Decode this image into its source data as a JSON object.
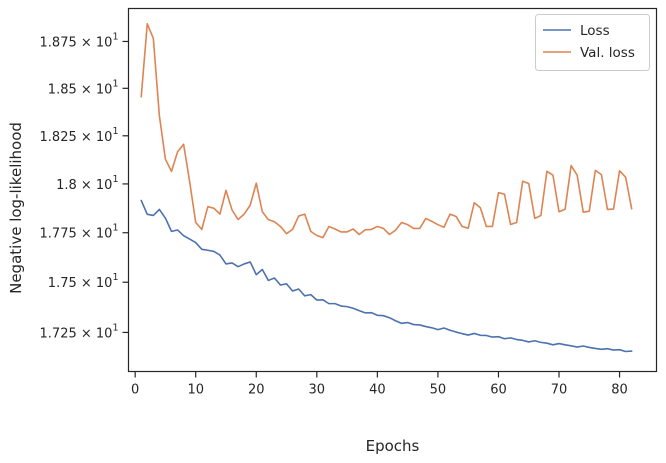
{
  "chart_data": {
    "type": "line",
    "xlabel": "Epochs",
    "ylabel": "Negative log-likelihood",
    "xlim": [
      -1.1,
      86.1
    ],
    "ylim": [
      17.058,
      18.928
    ],
    "x_ticks": [
      0,
      10,
      20,
      30,
      40,
      50,
      60,
      70,
      80
    ],
    "x_tick_labels": [
      "0",
      "10",
      "20",
      "30",
      "40",
      "50",
      "60",
      "70",
      "80"
    ],
    "y_ticks": [
      17.25,
      17.5,
      17.75,
      18.0,
      18.25,
      18.5,
      18.75
    ],
    "y_tick_labels": [
      {
        "mantissa": "1.725",
        "exponent": "1"
      },
      {
        "mantissa": "1.75",
        "exponent": "1"
      },
      {
        "mantissa": "1.775",
        "exponent": "1"
      },
      {
        "mantissa": "1.8",
        "exponent": "1"
      },
      {
        "mantissa": "1.825",
        "exponent": "1"
      },
      {
        "mantissa": "1.85",
        "exponent": "1"
      },
      {
        "mantissa": "1.875",
        "exponent": "1"
      }
    ],
    "y_scale": "log",
    "grid": false,
    "legend_position": "top-right",
    "x": [
      1,
      2,
      3,
      4,
      5,
      6,
      7,
      8,
      9,
      10,
      11,
      12,
      13,
      14,
      15,
      16,
      17,
      18,
      19,
      20,
      21,
      22,
      23,
      24,
      25,
      26,
      27,
      28,
      29,
      30,
      31,
      32,
      33,
      34,
      35,
      36,
      37,
      38,
      39,
      40,
      41,
      42,
      43,
      44,
      45,
      46,
      47,
      48,
      49,
      50,
      51,
      52,
      53,
      54,
      55,
      56,
      57,
      58,
      59,
      60,
      61,
      62,
      63,
      64,
      65,
      66,
      67,
      68,
      69,
      70,
      71,
      72,
      73,
      74,
      75,
      76,
      77,
      78,
      79,
      80,
      81,
      82
    ],
    "series": [
      {
        "name": "Loss",
        "color": "#4c72b0",
        "values": [
          17.915,
          17.844,
          17.838,
          17.869,
          17.824,
          17.757,
          17.764,
          17.735,
          17.718,
          17.7,
          17.666,
          17.661,
          17.655,
          17.637,
          17.592,
          17.597,
          17.578,
          17.592,
          17.602,
          17.538,
          17.564,
          17.509,
          17.521,
          17.486,
          17.492,
          17.456,
          17.466,
          17.432,
          17.438,
          17.411,
          17.412,
          17.393,
          17.393,
          17.381,
          17.378,
          17.37,
          17.358,
          17.347,
          17.348,
          17.335,
          17.333,
          17.323,
          17.308,
          17.295,
          17.299,
          17.289,
          17.287,
          17.279,
          17.273,
          17.264,
          17.272,
          17.261,
          17.252,
          17.244,
          17.237,
          17.245,
          17.236,
          17.235,
          17.227,
          17.229,
          17.219,
          17.223,
          17.215,
          17.211,
          17.203,
          17.209,
          17.201,
          17.197,
          17.189,
          17.195,
          17.189,
          17.184,
          17.178,
          17.183,
          17.176,
          17.171,
          17.167,
          17.17,
          17.163,
          17.165,
          17.156,
          17.158
        ]
      },
      {
        "name": "Val. loss",
        "color": "#dd8452",
        "values": [
          18.455,
          18.845,
          18.767,
          18.355,
          18.128,
          18.065,
          18.166,
          18.206,
          18.012,
          17.802,
          17.767,
          17.883,
          17.875,
          17.845,
          17.967,
          17.866,
          17.817,
          17.845,
          17.891,
          18.004,
          17.857,
          17.817,
          17.806,
          17.782,
          17.745,
          17.767,
          17.835,
          17.845,
          17.757,
          17.736,
          17.725,
          17.782,
          17.769,
          17.754,
          17.754,
          17.769,
          17.741,
          17.765,
          17.767,
          17.782,
          17.772,
          17.741,
          17.763,
          17.802,
          17.791,
          17.772,
          17.772,
          17.823,
          17.808,
          17.791,
          17.778,
          17.845,
          17.833,
          17.782,
          17.773,
          17.903,
          17.878,
          17.782,
          17.782,
          17.955,
          17.947,
          17.792,
          17.802,
          18.014,
          18.002,
          17.823,
          17.838,
          18.065,
          18.045,
          17.857,
          17.87,
          18.095,
          18.045,
          17.855,
          17.86,
          18.07,
          18.048,
          17.869,
          17.871,
          18.068,
          18.035,
          17.872
        ]
      }
    ]
  }
}
